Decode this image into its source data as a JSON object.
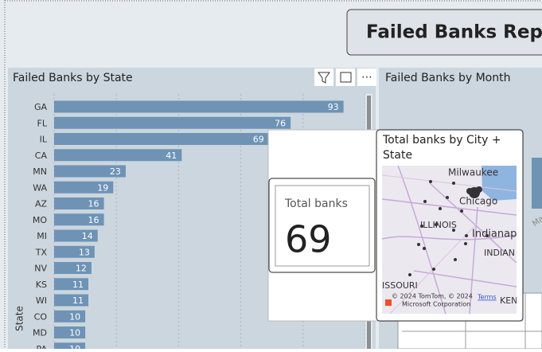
{
  "header": {
    "title": "Failed Banks Repo"
  },
  "chart_data": {
    "type": "bar",
    "orientation": "horizontal",
    "title": "Failed Banks by State",
    "y_label": "State",
    "categories": [
      "GA",
      "FL",
      "IL",
      "CA",
      "MN",
      "WA",
      "AZ",
      "MO",
      "MI",
      "TX",
      "NV",
      "KS",
      "WI",
      "CO",
      "MD",
      "PA"
    ],
    "values": [
      93,
      76,
      69,
      41,
      23,
      19,
      16,
      16,
      14,
      13,
      12,
      11,
      11,
      10,
      10,
      10
    ],
    "color": "#6e93b5",
    "xlim": [
      0,
      100
    ],
    "xticks": [
      0,
      20,
      40,
      60,
      80,
      100
    ],
    "grid": true
  },
  "month_panel": {
    "title": "Failed Banks by Month",
    "axis_label": "March"
  },
  "tooltip": {
    "card": {
      "label": "Total banks",
      "value": 69
    },
    "map": {
      "title": [
        "Total banks by City +",
        "State"
      ],
      "labels": [
        "Milwaukee",
        "Chicago",
        "ILLINOIS",
        "Indianap",
        "INDIAN",
        "ISSOURI",
        "KEN"
      ],
      "copyright": [
        "© 2024 TomTom, © 2024",
        "Microsoft Corporation"
      ],
      "terms": "Terms"
    }
  }
}
